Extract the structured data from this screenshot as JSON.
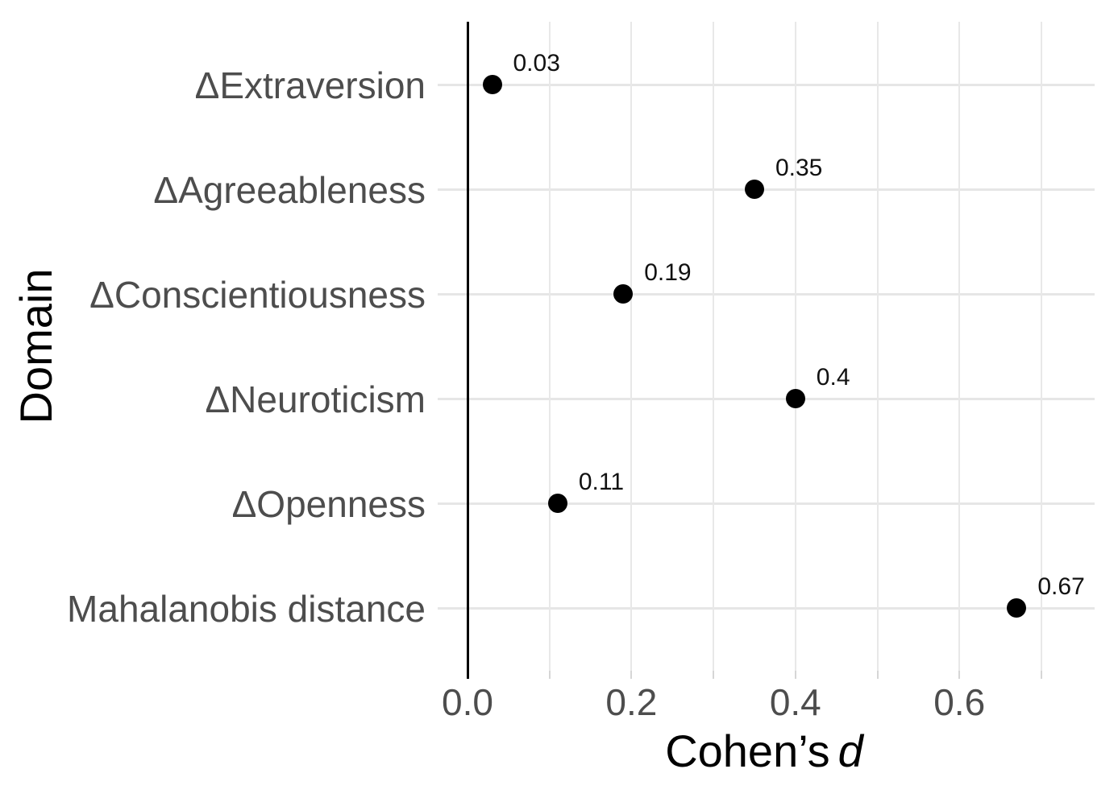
{
  "figure": {
    "background": "#ffffff"
  },
  "chart_data": {
    "type": "scatter",
    "subtype": "horizontal-dot-plot",
    "title": "",
    "xlabel_prefix": "Cohen’s",
    "xlabel_italic": "d",
    "ylabel": "Domain",
    "categories": [
      "ΔExtraversion",
      "ΔAgreeableness",
      "ΔConscientiousness",
      "ΔNeuroticism",
      "ΔOpenness",
      "Mahalanobis distance"
    ],
    "values": [
      0.03,
      0.35,
      0.19,
      0.4,
      0.11,
      0.67
    ],
    "value_labels": [
      "0.03",
      "0.35",
      "0.19",
      "0.4",
      "0.11",
      "0.67"
    ],
    "x_ticks": [
      {
        "value": 0.0,
        "label": "0.0"
      },
      {
        "value": 0.1,
        "label": ""
      },
      {
        "value": 0.2,
        "label": "0.2"
      },
      {
        "value": 0.3,
        "label": ""
      },
      {
        "value": 0.4,
        "label": "0.4"
      },
      {
        "value": 0.5,
        "label": ""
      },
      {
        "value": 0.6,
        "label": "0.6"
      },
      {
        "value": 0.7,
        "label": ""
      }
    ],
    "xlim": [
      -0.036,
      0.765
    ],
    "zero_line_at": 0.0,
    "grid": true,
    "legend": "none",
    "colors": {
      "point": "#000000",
      "grid_horizontal": "#e6e6e6",
      "grid_vertical": "#e8e8e8",
      "zero_line": "#000000",
      "axis_text": "#4d4d4d",
      "axis_title": "#000000",
      "value_label": "#111111",
      "tick_mark": "#d6d6d6",
      "background": "#ffffff"
    }
  }
}
